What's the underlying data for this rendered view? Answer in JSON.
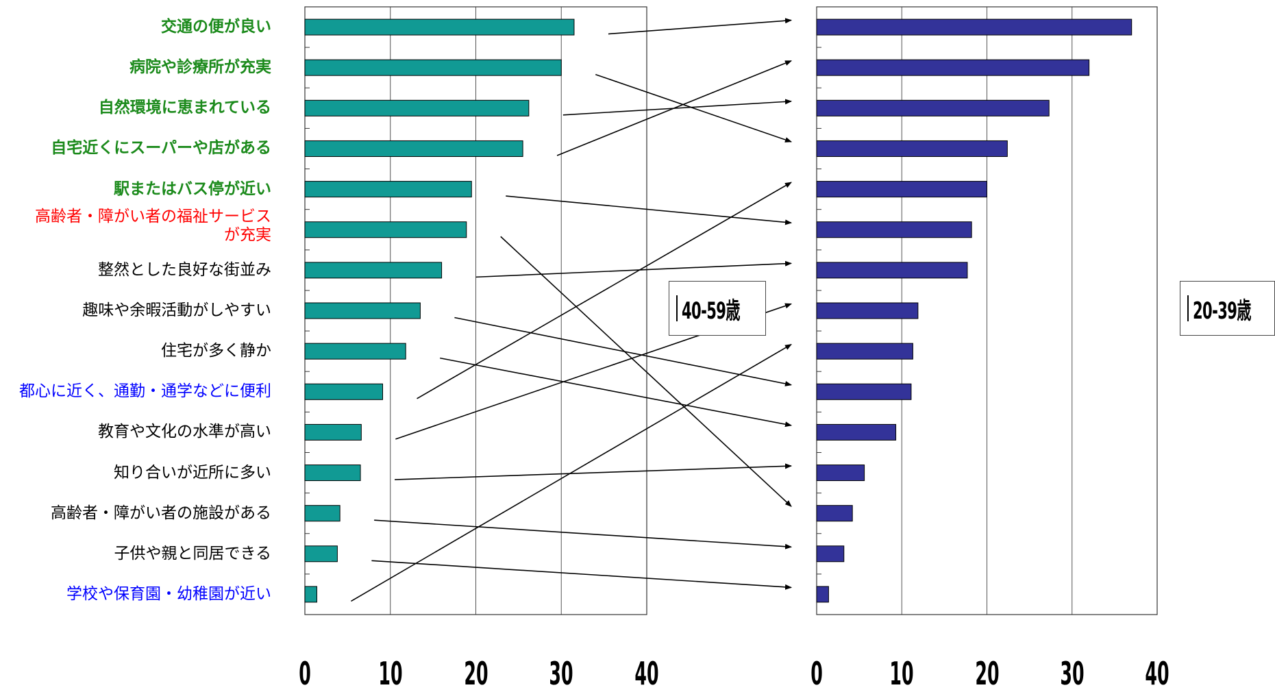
{
  "chart_data": [
    {
      "type": "bar",
      "orientation": "horizontal",
      "categories": [
        "交通の便が良い",
        "病院や診療所が充実",
        "自然環境に恵まれている",
        "自宅近くにスーパーや店がある",
        "駅またはバス停が近い",
        "高齢者・障がい者の福祉サービス\nが充実",
        "整然とした良好な街並み",
        "趣味や余暇活動がしやすい",
        "住宅が多く静か",
        "都心に近く、通勤・通学などに便利",
        "教育や文化の水準が高い",
        "知り合いが近所に多い",
        "高齢者・障がい者の施設がある",
        "子供や親と同居できる",
        "学校や保育園・幼稚園が近い"
      ],
      "category_colors": [
        "#1b8a1b",
        "#1b8a1b",
        "#1b8a1b",
        "#1b8a1b",
        "#1b8a1b",
        "#ff0000",
        "#000000",
        "#000000",
        "#000000",
        "#0000ff",
        "#000000",
        "#000000",
        "#000000",
        "#000000",
        "#0000ff"
      ],
      "category_bold": [
        true,
        true,
        true,
        true,
        true,
        false,
        false,
        false,
        false,
        false,
        false,
        false,
        false,
        false,
        false
      ],
      "series": [
        {
          "name": "40-59歳",
          "color": "#119a94",
          "values": [
            31.5,
            30,
            26.2,
            25.5,
            19.5,
            18.9,
            16,
            13.5,
            11.8,
            9.1,
            6.6,
            6.5,
            4.1,
            3.8,
            1.4
          ]
        }
      ],
      "xlim": [
        0,
        40
      ],
      "xticks": [
        "0",
        "10",
        "20",
        "30",
        "40"
      ],
      "grid": true,
      "legend": "right"
    },
    {
      "type": "bar",
      "orientation": "horizontal",
      "series": [
        {
          "name": "20-39歳",
          "color": "#333399",
          "values": [
            37,
            32,
            27.3,
            22.4,
            20,
            18.2,
            17.7,
            11.9,
            11.3,
            11.1,
            9.3,
            5.6,
            4.2,
            3.2,
            1.4
          ]
        }
      ],
      "xlim": [
        0,
        40
      ],
      "xticks": [
        "0",
        "10",
        "20",
        "30",
        "40"
      ],
      "grid": true,
      "legend": "right"
    }
  ],
  "arrows": [
    {
      "from": 0,
      "to": 0
    },
    {
      "from": 1,
      "to": 3
    },
    {
      "from": 2,
      "to": 2
    },
    {
      "from": 3,
      "to": 1
    },
    {
      "from": 4,
      "to": 5
    },
    {
      "from": 5,
      "to": 12
    },
    {
      "from": 6,
      "to": 6
    },
    {
      "from": 7,
      "to": 9
    },
    {
      "from": 8,
      "to": 10
    },
    {
      "from": 9,
      "to": 4
    },
    {
      "from": 10,
      "to": 7
    },
    {
      "from": 11,
      "to": 11
    },
    {
      "from": 12,
      "to": 13
    },
    {
      "from": 13,
      "to": 14
    },
    {
      "from": 14,
      "to": 8
    }
  ]
}
